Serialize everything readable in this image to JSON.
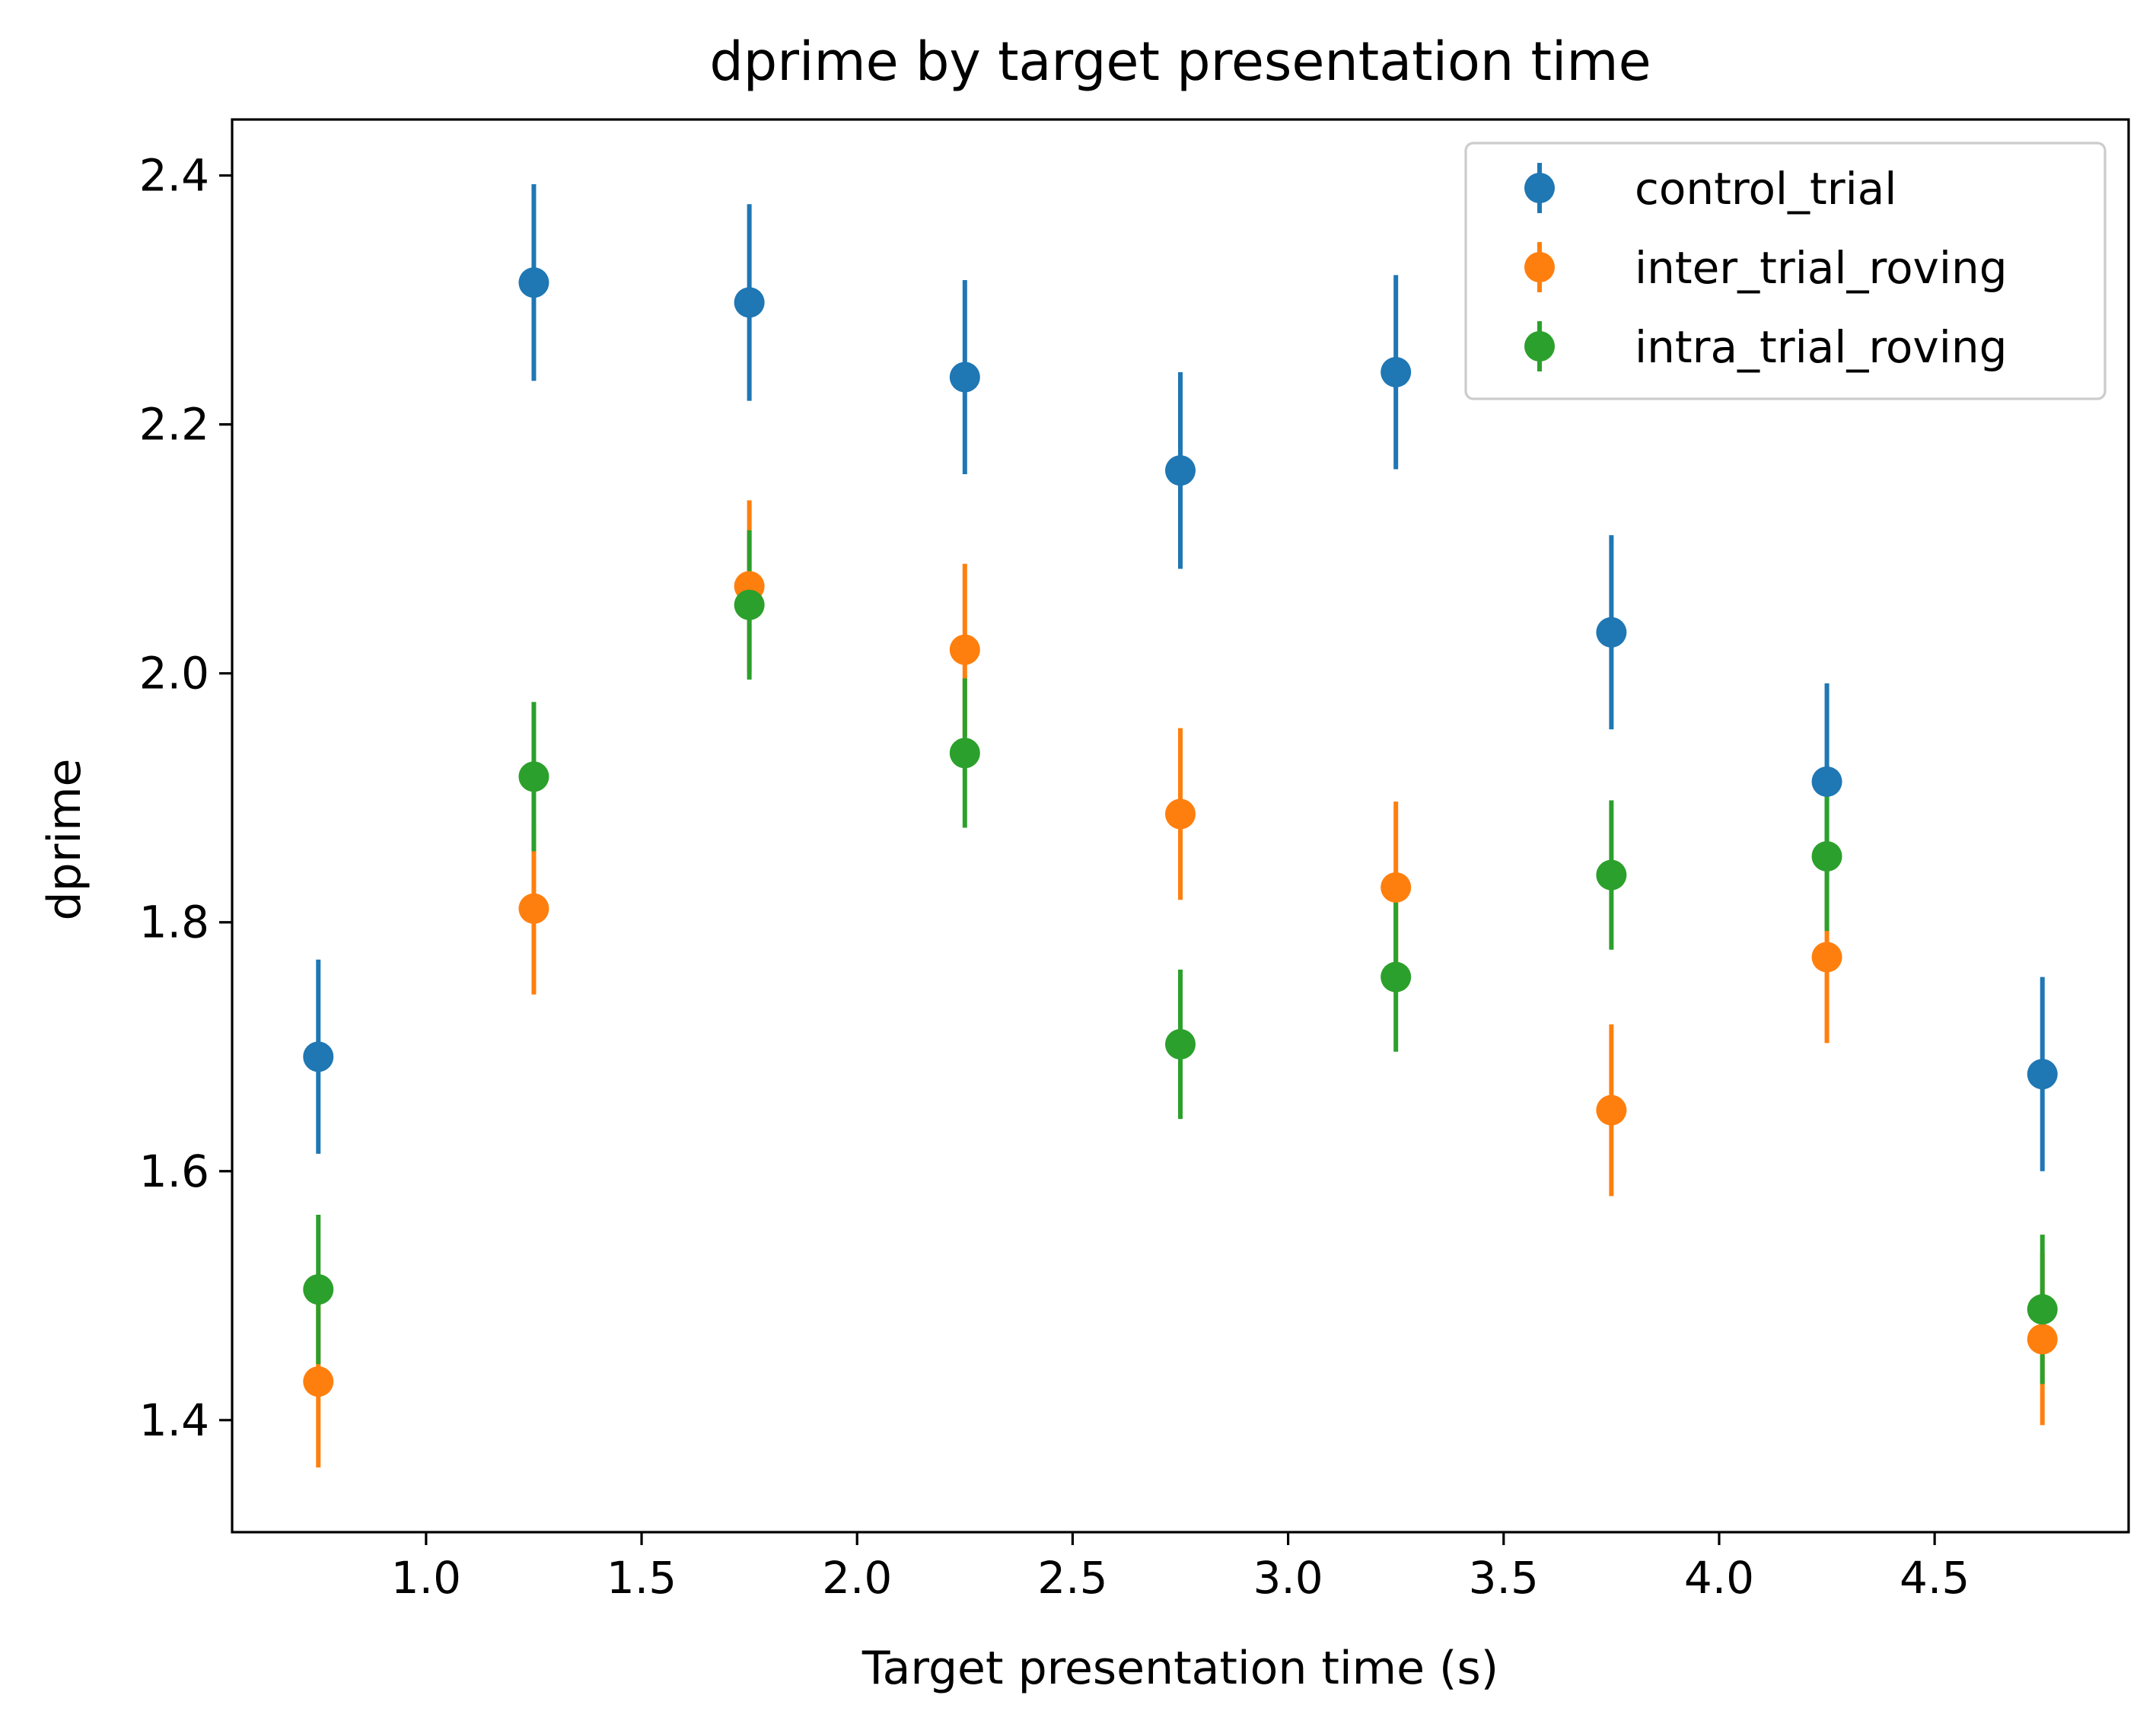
{
  "chart_data": {
    "type": "scatter",
    "title": "dprime by target presentation time",
    "xlabel": "Target presentation time (s)",
    "ylabel": "dprime",
    "xlim": [
      0.55,
      4.95
    ],
    "ylim": [
      1.31,
      2.445
    ],
    "xticks": [
      1.0,
      1.5,
      2.0,
      2.5,
      3.0,
      3.5,
      4.0,
      4.5
    ],
    "xtick_labels": [
      "1.0",
      "1.5",
      "2.0",
      "2.5",
      "3.0",
      "3.5",
      "4.0",
      "4.5"
    ],
    "yticks": [
      1.4,
      1.6,
      1.8,
      2.0,
      2.2,
      2.4
    ],
    "ytick_labels": [
      "1.4",
      "1.6",
      "1.8",
      "2.0",
      "2.2",
      "2.4"
    ],
    "grid": false,
    "legend_position": "top-right",
    "x": [
      0.75,
      1.25,
      1.75,
      2.25,
      2.75,
      3.25,
      3.75,
      4.25,
      4.75
    ],
    "series": [
      {
        "name": "control_trial",
        "color": "#1f77b4",
        "y": [
          1.692,
          2.314,
          2.298,
          2.238,
          2.163,
          2.242,
          2.033,
          1.913,
          1.678
        ],
        "yerr": [
          0.078,
          0.079,
          0.079,
          0.078,
          0.079,
          0.078,
          0.078,
          0.079,
          0.078
        ]
      },
      {
        "name": "inter_trial_roving",
        "color": "#ff7f0e",
        "y": [
          1.431,
          1.811,
          2.07,
          2.019,
          1.887,
          1.828,
          1.649,
          1.772,
          1.465
        ],
        "yerr": [
          0.069,
          0.069,
          0.069,
          0.069,
          0.069,
          0.069,
          0.069,
          0.069,
          0.069
        ]
      },
      {
        "name": "intra_trial_roving",
        "color": "#2ca02c",
        "y": [
          1.505,
          1.917,
          2.055,
          1.936,
          1.702,
          1.756,
          1.838,
          1.853,
          1.489
        ],
        "yerr": [
          0.06,
          0.06,
          0.06,
          0.06,
          0.06,
          0.06,
          0.06,
          0.06,
          0.06
        ]
      }
    ]
  }
}
